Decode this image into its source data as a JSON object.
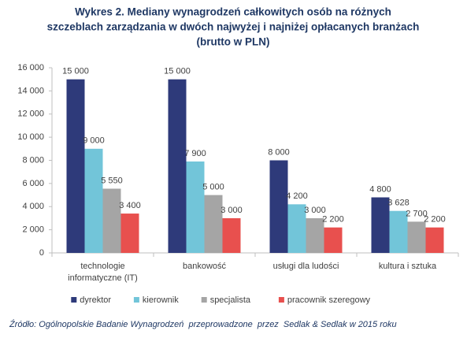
{
  "chart_data": {
    "type": "bar",
    "title": [
      "Wykres 2. Mediany wynagrodzeń całkowitych osób na różnych",
      "szczeblach zarządzania w dwóch najwyżej i najniżej opłacanych branżach",
      "(brutto w PLN)"
    ],
    "categories": [
      [
        "technologie",
        "informatyczne (IT)"
      ],
      [
        "bankowość"
      ],
      [
        "usługi dla ludości"
      ],
      [
        "kultura i sztuka"
      ]
    ],
    "series": [
      {
        "name": "dyrektor",
        "color": "#2e3a7a",
        "values": [
          15000,
          15000,
          8000,
          4800
        ],
        "value_labels": [
          "15 000",
          "15 000",
          "8 000",
          "4 800"
        ]
      },
      {
        "name": "kierownik",
        "color": "#72c5d9",
        "values": [
          9000,
          7900,
          4200,
          3628
        ],
        "value_labels": [
          "9 000",
          "7 900",
          "4 200",
          "3 628"
        ]
      },
      {
        "name": "specjalista",
        "color": "#a5a5a5",
        "values": [
          5550,
          5000,
          3000,
          2700
        ],
        "value_labels": [
          "5 550",
          "5 000",
          "3 000",
          "2 700"
        ]
      },
      {
        "name": "pracownik szeregowy",
        "color": "#e8504e",
        "values": [
          3400,
          3000,
          2200,
          2200
        ],
        "value_labels": [
          "3 400",
          "3 000",
          "2 200",
          "2 200"
        ]
      }
    ],
    "ylim": [
      0,
      16000
    ],
    "yticks": [
      {
        "value": 0,
        "label": "0"
      },
      {
        "value": 2000,
        "label": "2 000"
      },
      {
        "value": 4000,
        "label": "4 000"
      },
      {
        "value": 6000,
        "label": "6 000"
      },
      {
        "value": 8000,
        "label": "8 000"
      },
      {
        "value": 10000,
        "label": "10 000"
      },
      {
        "value": 12000,
        "label": "12 000"
      },
      {
        "value": 14000,
        "label": "14 000"
      },
      {
        "value": 16000,
        "label": "16 000"
      }
    ],
    "legend": "bottom",
    "source": "Źródło: Ogólnopolskie Badanie Wynagrodzeń  przeprowadzone  przez  Sedlak & Sedlak w 2015 roku"
  }
}
